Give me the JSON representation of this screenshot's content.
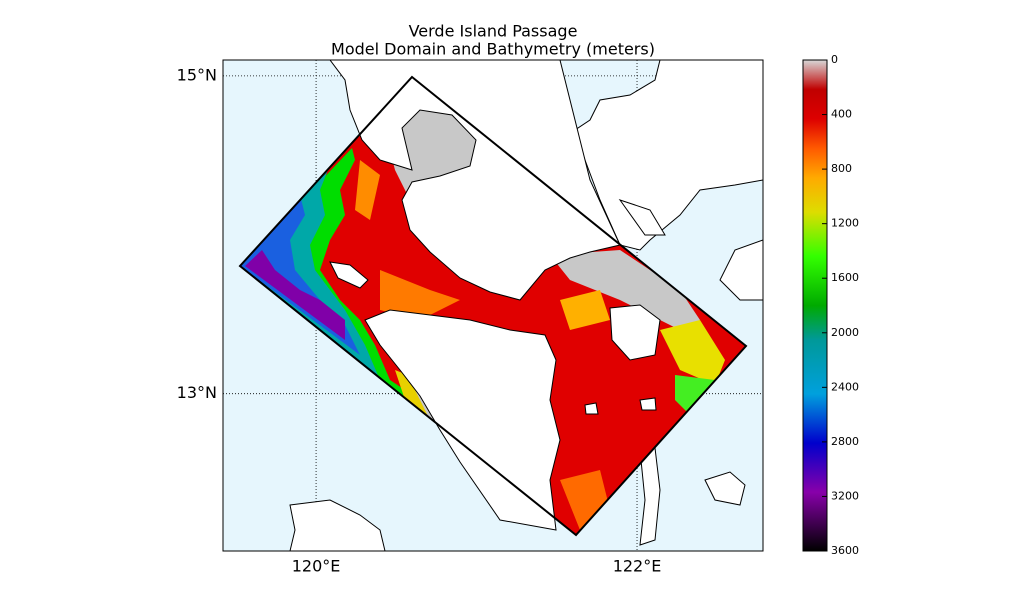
{
  "title": [
    "Verde Island Passage",
    "Model Domain and Bathymetry (meters)"
  ],
  "map": {
    "lon_range": [
      119.42,
      122.785
    ],
    "lat_range": [
      12.01,
      15.1
    ],
    "lon_ticks": [
      {
        "value": 120,
        "label": "120°E"
      },
      {
        "value": 122,
        "label": "122°E"
      }
    ],
    "lat_ticks": [
      {
        "value": 15,
        "label": "15°N"
      },
      {
        "value": 13,
        "label": "13°N"
      }
    ]
  },
  "colorbar": {
    "range": [
      0,
      3600
    ],
    "ticks": [
      0,
      400,
      800,
      1200,
      1600,
      2000,
      2400,
      2800,
      3200,
      3600
    ]
  }
}
